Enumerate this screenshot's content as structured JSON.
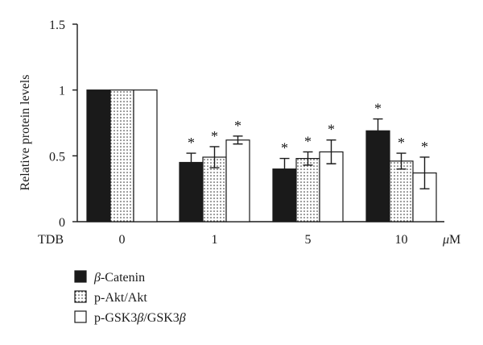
{
  "chart_data": {
    "type": "bar",
    "ylabel": "Relative protein levels",
    "x_prefix_label": "TDB",
    "x_unit": "μM",
    "categories": [
      "0",
      "1",
      "5",
      "10"
    ],
    "ylim": [
      0,
      1.5
    ],
    "yticks": [
      0,
      0.5,
      1,
      1.5
    ],
    "ytick_labels": [
      "0",
      "0.5",
      "1",
      "1.5"
    ],
    "series": [
      {
        "name_parts": [
          {
            "text": "β",
            "italic": true
          },
          {
            "text": "-Catenin",
            "italic": false
          }
        ],
        "pattern": "solid",
        "color": "#1a1a1a",
        "values": [
          1.0,
          0.45,
          0.4,
          0.69
        ],
        "errors": [
          0,
          0.07,
          0.08,
          0.09
        ],
        "significant": [
          false,
          true,
          true,
          true
        ]
      },
      {
        "name_parts": [
          {
            "text": "p-Akt/Akt",
            "italic": false
          }
        ],
        "pattern": "dots",
        "color": "#1a1a1a",
        "values": [
          1.0,
          0.49,
          0.48,
          0.46
        ],
        "errors": [
          0,
          0.08,
          0.05,
          0.06
        ],
        "significant": [
          false,
          true,
          true,
          true
        ]
      },
      {
        "name_parts": [
          {
            "text": "p-GSK3",
            "italic": false
          },
          {
            "text": "β",
            "italic": true
          },
          {
            "text": "/GSK3",
            "italic": false
          },
          {
            "text": "β",
            "italic": true
          }
        ],
        "pattern": "hollow",
        "color": "#ffffff",
        "values": [
          1.0,
          0.62,
          0.53,
          0.37
        ],
        "errors": [
          0,
          0.03,
          0.09,
          0.12
        ],
        "significant": [
          false,
          true,
          true,
          true
        ]
      }
    ],
    "significance_marker": "*",
    "legend_position": "bottom-left",
    "grid": false
  }
}
